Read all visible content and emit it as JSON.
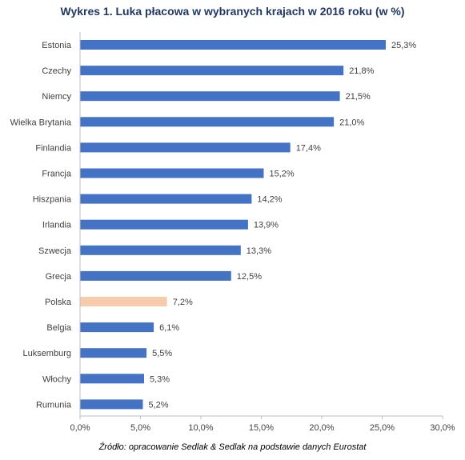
{
  "title": "Wykres 1. Luka płacowa w wybranych krajach w 2016 roku (w %)",
  "source": "Źródło: opracowanie Sedlak & Sedlak na podstawie danych Eurostat",
  "colors": {
    "bar": "#4472c4",
    "highlight": "#f8cbad",
    "text": "#404040",
    "title": "#1f3864",
    "axis": "#bfbfbf"
  },
  "chart_data": {
    "type": "bar",
    "orientation": "horizontal",
    "title": "Wykres 1. Luka płacowa w wybranych krajach w 2016 roku (w %)",
    "categories": [
      "Estonia",
      "Czechy",
      "Niemcy",
      "Wielka Brytania",
      "Finlandia",
      "Francja",
      "Hiszpania",
      "Irlandia",
      "Szwecja",
      "Grecja",
      "Polska",
      "Belgia",
      "Luksemburg",
      "Włochy",
      "Rumunia"
    ],
    "values": [
      25.3,
      21.8,
      21.5,
      21.0,
      17.4,
      15.2,
      14.2,
      13.9,
      13.3,
      12.5,
      7.2,
      6.1,
      5.5,
      5.3,
      5.2
    ],
    "value_labels": [
      "25,3%",
      "21,8%",
      "21,5%",
      "21,0%",
      "17,4%",
      "15,2%",
      "14,2%",
      "13,9%",
      "13,3%",
      "12,5%",
      "7,2%",
      "6,1%",
      "5,5%",
      "5,3%",
      "5,2%"
    ],
    "highlight": "Polska",
    "xlim": [
      0,
      30
    ],
    "xticks": [
      0,
      5,
      10,
      15,
      20,
      25,
      30
    ],
    "xtick_labels": [
      "0,0%",
      "5,0%",
      "10,0%",
      "15,0%",
      "20,0%",
      "25,0%",
      "30,0%"
    ],
    "grid": false,
    "legend": "none"
  }
}
